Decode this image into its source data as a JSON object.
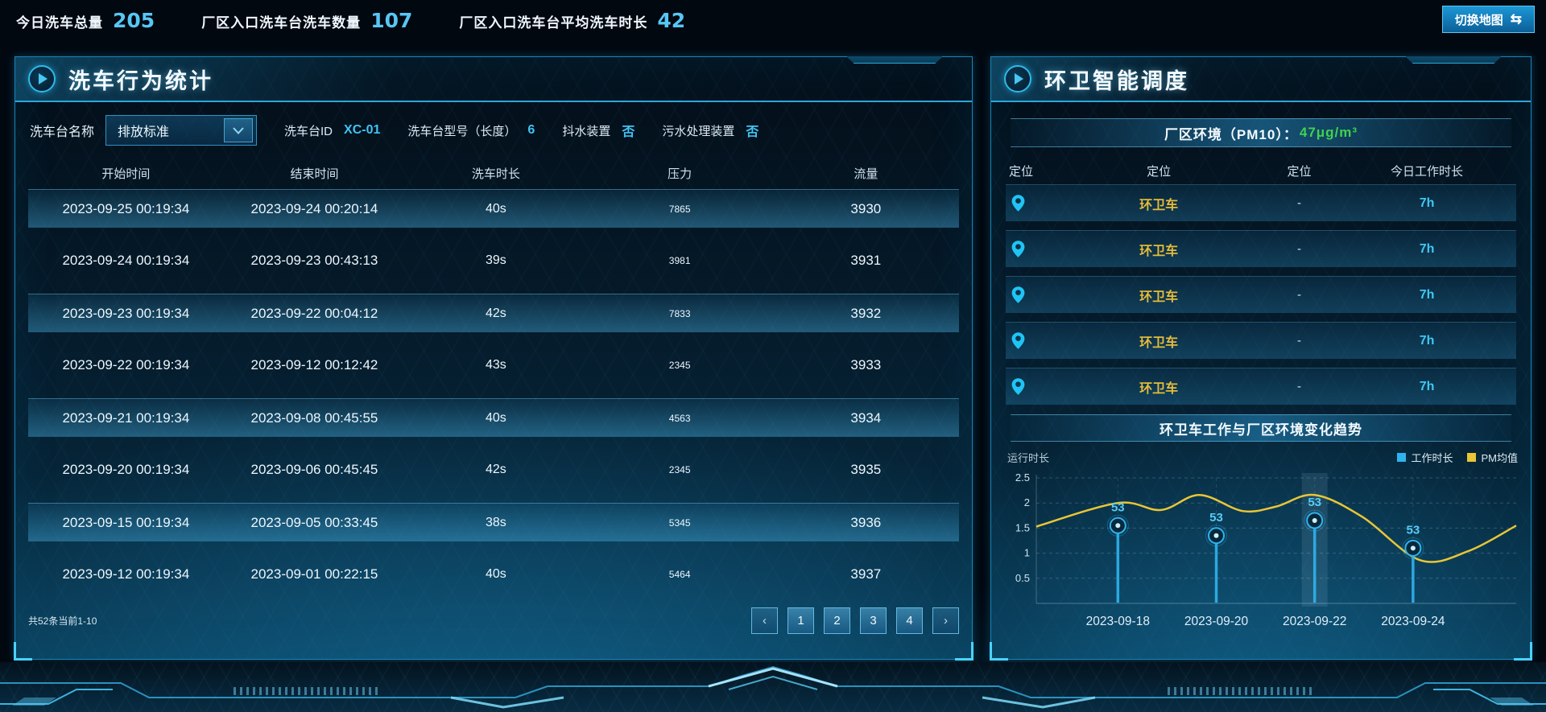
{
  "colors": {
    "accent_cyan": "#41c3f4",
    "accent_yellow": "#e5bc3a",
    "accent_green": "#3fd24f",
    "series_blue": "#2fb3ee",
    "series_yellow": "#e9c636"
  },
  "topbar": {
    "stats": [
      {
        "label": "今日洗车总量",
        "value": "205"
      },
      {
        "label": "厂区入口洗车台洗车数量",
        "value": "107"
      },
      {
        "label": "厂区入口洗车台平均洗车时长",
        "value": "42"
      }
    ],
    "map_button": {
      "label": "切换地图",
      "icon_glyph": "⇆"
    }
  },
  "wash_panel": {
    "title": "洗车行为统计",
    "filters": {
      "name_label": "洗车台名称",
      "dropdown_value": "排放标准",
      "station_id_label": "洗车台ID",
      "station_id_value": "XC-01",
      "model_label": "洗车台型号（长度）",
      "model_value": "6",
      "shake_label": "抖水装置",
      "shake_value": "否",
      "sewage_label": "污水处理装置",
      "sewage_value": "否"
    },
    "table": {
      "headers": [
        "开始时间",
        "结束时间",
        "洗车时长",
        "压力",
        "流量"
      ],
      "rows": [
        [
          "2023-09-25 00:19:34",
          "2023-09-24 00:20:14",
          "40s",
          "7865",
          "3930"
        ],
        [
          "2023-09-24 00:19:34",
          "2023-09-23 00:43:13",
          "39s",
          "3981",
          "3931"
        ],
        [
          "2023-09-23 00:19:34",
          "2023-09-22 00:04:12",
          "42s",
          "7833",
          "3932"
        ],
        [
          "2023-09-22 00:19:34",
          "2023-09-12 00:12:42",
          "43s",
          "2345",
          "3933"
        ],
        [
          "2023-09-21 00:19:34",
          "2023-09-08 00:45:55",
          "40s",
          "4563",
          "3934"
        ],
        [
          "2023-09-20 00:19:34",
          "2023-09-06 00:45:45",
          "42s",
          "2345",
          "3935"
        ],
        [
          "2023-09-15 00:19:34",
          "2023-09-05 00:33:45",
          "38s",
          "5345",
          "3936"
        ],
        [
          "2023-09-12 00:19:34",
          "2023-09-01 00:22:15",
          "40s",
          "5464",
          "3937"
        ]
      ]
    },
    "pagination": {
      "info": "共52条当前1-10",
      "prev": "‹",
      "pages": [
        "1",
        "2",
        "3",
        "4"
      ],
      "next": "›"
    }
  },
  "dispatch_panel": {
    "title": "环卫智能调度",
    "pm_banner": {
      "label": "厂区环境（PM10）：",
      "value": "47μg/m³"
    },
    "table": {
      "headers": [
        "定位",
        "定位",
        "定位",
        "今日工作时长"
      ],
      "rows": [
        {
          "icon": "location-pin",
          "name": "环卫车",
          "dash": "-",
          "hours": "7h"
        },
        {
          "icon": "location-pin",
          "name": "环卫车",
          "dash": "-",
          "hours": "7h"
        },
        {
          "icon": "location-pin",
          "name": "环卫车",
          "dash": "-",
          "hours": "7h"
        },
        {
          "icon": "location-pin",
          "name": "环卫车",
          "dash": "-",
          "hours": "7h"
        },
        {
          "icon": "location-pin",
          "name": "环卫车",
          "dash": "-",
          "hours": "7h"
        }
      ]
    },
    "trend_title": "环卫车工作与厂区环境变化趋势"
  },
  "chart_data": {
    "type": "line",
    "title": "环卫车工作与厂区环境变化趋势",
    "ylabel": "运行时长",
    "ylim": [
      0,
      2.5
    ],
    "yticks": [
      0.5,
      1,
      1.5,
      2,
      2.5
    ],
    "categories": [
      "2023-09-18",
      "2023-09-20",
      "2023-09-22",
      "2023-09-24"
    ],
    "grid": true,
    "legend_position": "top-right",
    "highlight_category": "2023-09-22",
    "series": [
      {
        "name": "工作时长",
        "type": "lollipop",
        "color": "#2fb3ee",
        "values": [
          1.55,
          1.35,
          1.65,
          1.1
        ],
        "labels": [
          "53",
          "53",
          "53",
          "53"
        ]
      },
      {
        "name": "PM均值",
        "type": "smooth-line",
        "color": "#e9c636",
        "points": [
          [
            0,
            1.53
          ],
          [
            0.17,
            2.0
          ],
          [
            0.26,
            1.86
          ],
          [
            0.34,
            2.16
          ],
          [
            0.43,
            1.84
          ],
          [
            0.5,
            1.93
          ],
          [
            0.58,
            2.16
          ],
          [
            0.68,
            1.72
          ],
          [
            0.8,
            0.86
          ],
          [
            0.9,
            1.04
          ],
          [
            1,
            1.55
          ]
        ]
      }
    ]
  }
}
